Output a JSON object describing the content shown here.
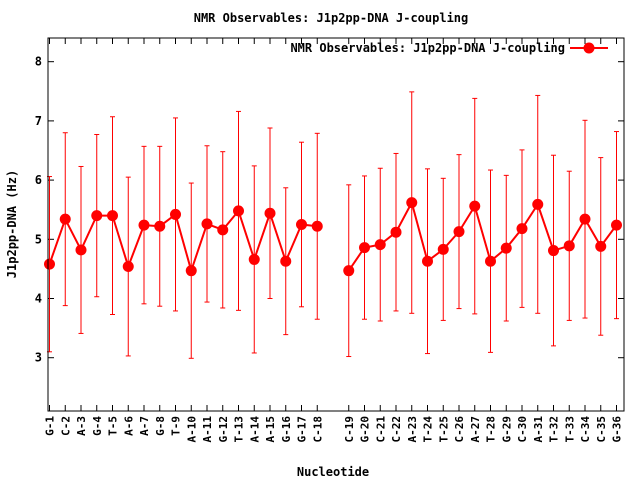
{
  "chart_data": {
    "type": "line",
    "title": "NMR Observables: J1p2pp-DNA J-coupling",
    "xlabel": "Nucleotide",
    "ylabel": "J1p2pp-DNA (Hz)",
    "ylim": [
      2.1,
      8.4
    ],
    "yticks": [
      3,
      4,
      5,
      6,
      7,
      8
    ],
    "grid": false,
    "legend": "top-right",
    "series": [
      {
        "name": "NMR Observables: J1p2pp-DNA J-coupling",
        "color": "#ff0000",
        "points": [
          {
            "label": "G-1",
            "pos": 1,
            "y": 4.58,
            "err": 1.48
          },
          {
            "label": "C-2",
            "pos": 2,
            "y": 5.34,
            "err": 1.46
          },
          {
            "label": "A-3",
            "pos": 3,
            "y": 4.82,
            "err": 1.41
          },
          {
            "label": "G-4",
            "pos": 4,
            "y": 5.4,
            "err": 1.37
          },
          {
            "label": "T-5",
            "pos": 5,
            "y": 5.4,
            "err": 1.67
          },
          {
            "label": "A-6",
            "pos": 6,
            "y": 4.54,
            "err": 1.51
          },
          {
            "label": "A-7",
            "pos": 7,
            "y": 5.24,
            "err": 1.33
          },
          {
            "label": "G-8",
            "pos": 8,
            "y": 5.22,
            "err": 1.35
          },
          {
            "label": "T-9",
            "pos": 9,
            "y": 5.42,
            "err": 1.63
          },
          {
            "label": "A-10",
            "pos": 10,
            "y": 4.47,
            "err": 1.48
          },
          {
            "label": "A-11",
            "pos": 11,
            "y": 5.26,
            "err": 1.32
          },
          {
            "label": "G-12",
            "pos": 12,
            "y": 5.16,
            "err": 1.32
          },
          {
            "label": "T-13",
            "pos": 13,
            "y": 5.48,
            "err": 1.68
          },
          {
            "label": "A-14",
            "pos": 14,
            "y": 4.66,
            "err": 1.58
          },
          {
            "label": "A-15",
            "pos": 15,
            "y": 5.44,
            "err": 1.44
          },
          {
            "label": "G-16",
            "pos": 16,
            "y": 4.63,
            "err": 1.24
          },
          {
            "label": "G-17",
            "pos": 17,
            "y": 5.25,
            "err": 1.39
          },
          {
            "label": "C-18",
            "pos": 18,
            "y": 5.22,
            "err": 1.57
          },
          {
            "label": "C-19",
            "pos": 20,
            "y": 4.47,
            "err": 1.45
          },
          {
            "label": "G-20",
            "pos": 21,
            "y": 4.86,
            "err": 1.21
          },
          {
            "label": "C-21",
            "pos": 22,
            "y": 4.91,
            "err": 1.29
          },
          {
            "label": "C-22",
            "pos": 23,
            "y": 5.12,
            "err": 1.33
          },
          {
            "label": "A-23",
            "pos": 24,
            "y": 5.62,
            "err": 1.87
          },
          {
            "label": "T-24",
            "pos": 25,
            "y": 4.63,
            "err": 1.56
          },
          {
            "label": "T-25",
            "pos": 26,
            "y": 4.83,
            "err": 1.2
          },
          {
            "label": "C-26",
            "pos": 27,
            "y": 5.13,
            "err": 1.3
          },
          {
            "label": "A-27",
            "pos": 28,
            "y": 5.56,
            "err": 1.82
          },
          {
            "label": "T-28",
            "pos": 29,
            "y": 4.63,
            "err": 1.54
          },
          {
            "label": "G-29",
            "pos": 30,
            "y": 4.85,
            "err": 1.23
          },
          {
            "label": "C-30",
            "pos": 31,
            "y": 5.18,
            "err": 1.33
          },
          {
            "label": "A-31",
            "pos": 32,
            "y": 5.59,
            "err": 1.84
          },
          {
            "label": "T-32",
            "pos": 33,
            "y": 4.81,
            "err": 1.61
          },
          {
            "label": "T-33",
            "pos": 34,
            "y": 4.89,
            "err": 1.26
          },
          {
            "label": "C-34",
            "pos": 35,
            "y": 5.34,
            "err": 1.67
          },
          {
            "label": "C-35",
            "pos": 36,
            "y": 4.88,
            "err": 1.5
          },
          {
            "label": "G-36",
            "pos": 37,
            "y": 5.24,
            "err": 1.58
          }
        ]
      }
    ]
  }
}
